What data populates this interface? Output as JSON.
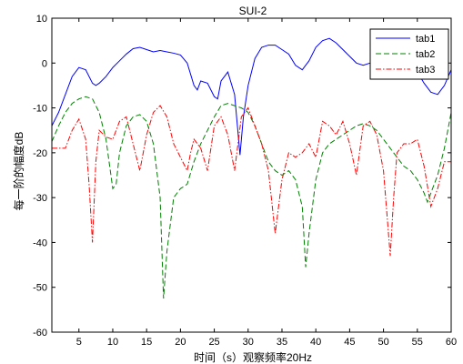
{
  "chart_data": {
    "type": "line",
    "title": "SUI-2",
    "xlabel": "时间（s）观察频率20Hz",
    "ylabel": "每一阶的幅度dB",
    "xlim": [
      1,
      60
    ],
    "ylim": [
      -60,
      10
    ],
    "xticks": [
      5,
      10,
      15,
      20,
      25,
      30,
      35,
      40,
      45,
      50,
      55,
      60
    ],
    "yticks": [
      10,
      0,
      -10,
      -20,
      -30,
      -40,
      -50,
      -60
    ],
    "grid": false,
    "legend_position": "top-right",
    "series": [
      {
        "name": "tab1",
        "color": "#0000ff",
        "style": "solid",
        "points": [
          [
            1,
            -14
          ],
          [
            2,
            -11
          ],
          [
            3,
            -7
          ],
          [
            4,
            -3
          ],
          [
            5,
            -1
          ],
          [
            6,
            -1.5
          ],
          [
            7,
            -4.5
          ],
          [
            7.5,
            -5
          ],
          [
            8,
            -4.5
          ],
          [
            9,
            -3
          ],
          [
            10,
            -1
          ],
          [
            11,
            0.5
          ],
          [
            12,
            2
          ],
          [
            13,
            3.2
          ],
          [
            14,
            3.5
          ],
          [
            15,
            3
          ],
          [
            16,
            2.5
          ],
          [
            17,
            2.8
          ],
          [
            18,
            2.5
          ],
          [
            19,
            2.2
          ],
          [
            20,
            1.8
          ],
          [
            21,
            0
          ],
          [
            22,
            -5
          ],
          [
            22.5,
            -6
          ],
          [
            23,
            -4
          ],
          [
            24,
            -4.5
          ],
          [
            25,
            -7.5
          ],
          [
            25.5,
            -8
          ],
          [
            26,
            -4
          ],
          [
            27,
            -2
          ],
          [
            28,
            -7
          ],
          [
            28.8,
            -20.5
          ],
          [
            29.3,
            -12
          ],
          [
            30,
            -5
          ],
          [
            31,
            1
          ],
          [
            32,
            3.5
          ],
          [
            33,
            4
          ],
          [
            34,
            4
          ],
          [
            35,
            3
          ],
          [
            36,
            2
          ],
          [
            37,
            -0.5
          ],
          [
            38,
            -1.5
          ],
          [
            39,
            0.5
          ],
          [
            40,
            3.5
          ],
          [
            41,
            5
          ],
          [
            42,
            5.5
          ],
          [
            43,
            4.5
          ],
          [
            44,
            3
          ],
          [
            45,
            1.5
          ],
          [
            46,
            0
          ],
          [
            47,
            -0.5
          ],
          [
            48,
            0
          ],
          [
            49,
            0.8
          ],
          [
            50,
            1.5
          ],
          [
            51,
            1.5
          ],
          [
            52,
            0.5
          ],
          [
            53,
            -1
          ],
          [
            54,
            -1
          ],
          [
            55,
            -2
          ],
          [
            56,
            -4.5
          ],
          [
            57,
            -6.5
          ],
          [
            58,
            -7
          ],
          [
            59,
            -5
          ],
          [
            60,
            -1.5
          ]
        ]
      },
      {
        "name": "tab2",
        "color": "#008000",
        "style": "dashed",
        "points": [
          [
            1,
            -17.5
          ],
          [
            2,
            -14
          ],
          [
            3,
            -11
          ],
          [
            4,
            -9
          ],
          [
            5,
            -8
          ],
          [
            6,
            -7.5
          ],
          [
            7,
            -8
          ],
          [
            8,
            -11
          ],
          [
            9,
            -17
          ],
          [
            10,
            -28
          ],
          [
            10.5,
            -27
          ],
          [
            11,
            -20
          ],
          [
            12,
            -14
          ],
          [
            13,
            -12
          ],
          [
            14,
            -11.5
          ],
          [
            15,
            -13
          ],
          [
            16,
            -18
          ],
          [
            17,
            -30
          ],
          [
            17.5,
            -52.5
          ],
          [
            18,
            -42
          ],
          [
            19,
            -30
          ],
          [
            20,
            -28
          ],
          [
            21,
            -27
          ],
          [
            22,
            -22
          ],
          [
            23,
            -18
          ],
          [
            24,
            -15
          ],
          [
            25,
            -12
          ],
          [
            26,
            -9.5
          ],
          [
            27,
            -9
          ],
          [
            28,
            -9.5
          ],
          [
            29,
            -10
          ],
          [
            30,
            -11
          ],
          [
            31,
            -14
          ],
          [
            32,
            -18
          ],
          [
            33,
            -22
          ],
          [
            34,
            -24
          ],
          [
            35,
            -25
          ],
          [
            36,
            -24
          ],
          [
            37,
            -26
          ],
          [
            38,
            -32
          ],
          [
            38.5,
            -45.5
          ],
          [
            39,
            -38
          ],
          [
            40,
            -26
          ],
          [
            41,
            -20
          ],
          [
            42,
            -18
          ],
          [
            43,
            -17
          ],
          [
            44,
            -16
          ],
          [
            45,
            -15
          ],
          [
            46,
            -14
          ],
          [
            47,
            -13.5
          ],
          [
            48,
            -14
          ],
          [
            49,
            -15
          ],
          [
            50,
            -17
          ],
          [
            51,
            -19
          ],
          [
            52,
            -21
          ],
          [
            53,
            -23
          ],
          [
            54,
            -24
          ],
          [
            55,
            -26
          ],
          [
            56,
            -29
          ],
          [
            56.5,
            -31
          ],
          [
            57,
            -29
          ],
          [
            58,
            -25
          ],
          [
            59,
            -19
          ],
          [
            60,
            -11
          ]
        ]
      },
      {
        "name": "tab3",
        "color": "#ff0000",
        "style": "dashdot",
        "points": [
          [
            1,
            -19
          ],
          [
            2,
            -19
          ],
          [
            3,
            -19
          ],
          [
            4,
            -15
          ],
          [
            5,
            -12.5
          ],
          [
            6,
            -17
          ],
          [
            6.5,
            -27
          ],
          [
            7,
            -40
          ],
          [
            7.5,
            -22
          ],
          [
            8,
            -15
          ],
          [
            9,
            -16.5
          ],
          [
            10,
            -17
          ],
          [
            11,
            -13
          ],
          [
            12,
            -12
          ],
          [
            13,
            -18
          ],
          [
            14,
            -24
          ],
          [
            15,
            -16
          ],
          [
            16,
            -11
          ],
          [
            17,
            -9.5
          ],
          [
            18,
            -12
          ],
          [
            19,
            -18
          ],
          [
            20,
            -21
          ],
          [
            21,
            -24
          ],
          [
            21.5,
            -20
          ],
          [
            22,
            -17
          ],
          [
            23,
            -19
          ],
          [
            24,
            -24
          ],
          [
            25,
            -14
          ],
          [
            26,
            -12
          ],
          [
            27,
            -16
          ],
          [
            28,
            -24
          ],
          [
            29,
            -12
          ],
          [
            30,
            -10
          ],
          [
            31,
            -14
          ],
          [
            32,
            -18
          ],
          [
            33,
            -24
          ],
          [
            34,
            -38
          ],
          [
            35,
            -26
          ],
          [
            36,
            -20
          ],
          [
            37,
            -21
          ],
          [
            38,
            -20
          ],
          [
            39,
            -18
          ],
          [
            40,
            -21
          ],
          [
            41,
            -13
          ],
          [
            42,
            -14
          ],
          [
            43,
            -16
          ],
          [
            44,
            -13
          ],
          [
            45,
            -18
          ],
          [
            46,
            -25
          ],
          [
            47,
            -14
          ],
          [
            48,
            -13
          ],
          [
            49,
            -16
          ],
          [
            50,
            -24
          ],
          [
            51,
            -43
          ],
          [
            51.5,
            -30
          ],
          [
            52,
            -20
          ],
          [
            53,
            -18
          ],
          [
            54,
            -18
          ],
          [
            55,
            -17
          ],
          [
            56,
            -23
          ],
          [
            57,
            -32
          ],
          [
            58,
            -28
          ],
          [
            59,
            -22
          ],
          [
            60,
            -22
          ]
        ]
      }
    ]
  }
}
